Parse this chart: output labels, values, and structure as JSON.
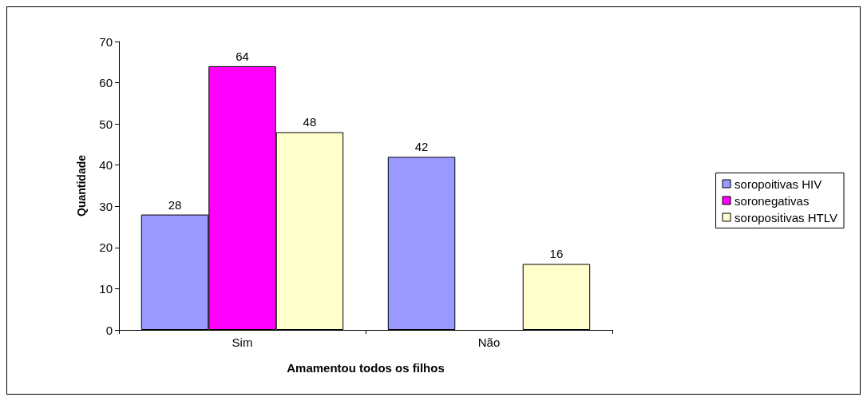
{
  "chart_data": {
    "type": "bar",
    "xlabel": "Amamentou todos os filhos",
    "ylabel": "Quantidade",
    "categories": [
      "Sim",
      "Não"
    ],
    "series": [
      {
        "name": "soropoitivas HIV",
        "color": "#9999ff",
        "values": [
          28,
          42
        ]
      },
      {
        "name": "soronegativas",
        "color": "#ff00ff",
        "values": [
          64,
          null
        ]
      },
      {
        "name": "soropositivas HTLV",
        "color": "#ffffcc",
        "values": [
          48,
          16
        ]
      }
    ],
    "ylim": [
      0,
      70
    ],
    "yticks": [
      0,
      10,
      20,
      30,
      40,
      50,
      60,
      70
    ],
    "grid": false,
    "legend": "right",
    "data_labels": true
  }
}
